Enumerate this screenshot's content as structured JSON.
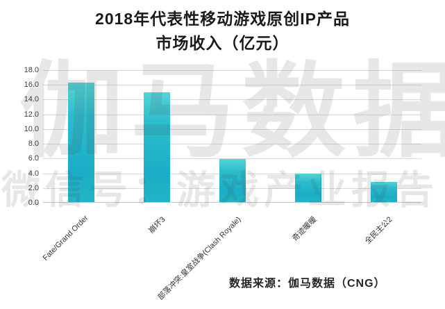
{
  "title": {
    "line1": "2018年代表性移动游戏原创IP产品",
    "line2": "市场收入（亿元）"
  },
  "watermark": {
    "line1": "伽马数据",
    "line2": "微信号：游戏产业报告"
  },
  "source_note": "数据来源：伽马数据（CNG）",
  "colors": {
    "bar_top": "#55d3d6",
    "bar_bottom": "#1aadc6",
    "gridline": "#dadada",
    "axis_text": "#3c3c3c",
    "title_text": "#1a1a1a",
    "watermark_text": "rgba(70,70,70,0.13)"
  },
  "chart_data": {
    "type": "bar",
    "title": "2018年代表性移动游戏原创IP产品市场收入（亿元）",
    "categories": [
      "Fate/Grand Order",
      "崩坏3",
      "部落冲突:皇室战争(Clash Royale)",
      "奇迹暖暖",
      "全民主公2"
    ],
    "values": [
      16.3,
      15.0,
      5.9,
      4.0,
      2.8
    ],
    "xlabel": "",
    "ylabel": "",
    "ylim": [
      0,
      18
    ],
    "ytick_step": 2,
    "grid": true,
    "legend": false
  }
}
